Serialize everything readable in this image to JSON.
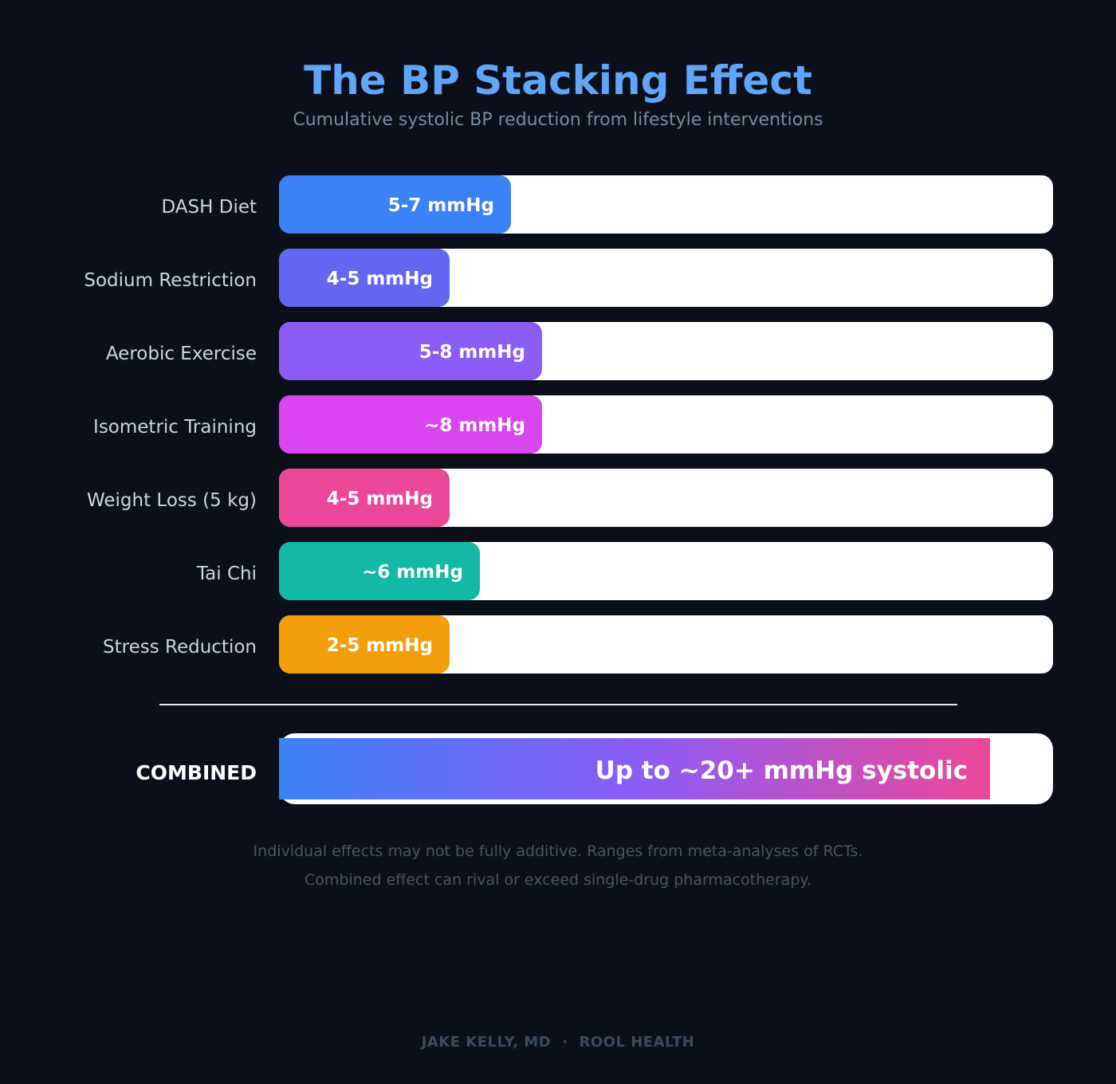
{
  "header": {
    "title": "The BP Stacking Effect",
    "subtitle": "Cumulative systolic BP reduction from lifestyle interventions"
  },
  "chart_data": {
    "type": "bar",
    "orientation": "horizontal",
    "title": "The BP Stacking Effect",
    "subtitle": "Cumulative systolic BP reduction from lifestyle interventions",
    "xlabel": "",
    "ylabel": "",
    "xlim": [
      0,
      25
    ],
    "grid": false,
    "legend": "none",
    "categories": [
      "DASH Diet",
      "Sodium Restriction",
      "Aerobic Exercise",
      "Isometric Training",
      "Weight Loss (5 kg)",
      "Tai Chi",
      "Stress Reduction"
    ],
    "values": [
      7.5,
      5.5,
      8.5,
      8.5,
      5.5,
      6.5,
      5.5
    ],
    "value_labels": [
      "5-7 mmHg",
      "4-5 mmHg",
      "5-8 mmHg",
      "~8 mmHg",
      "4-5 mmHg",
      "~6 mmHg",
      "2-5 mmHg"
    ],
    "colors": [
      "#3b82f6",
      "#6366f1",
      "#8b5cf6",
      "#d946ef",
      "#ec4899",
      "#14b8a6",
      "#f59e0b"
    ],
    "combined": {
      "label": "COMBINED",
      "value": 23,
      "value_label": "Up to ~20+ mmHg systolic",
      "gradient": [
        "#3b82f6",
        "#8b5cf6",
        "#ec4899"
      ]
    }
  },
  "notes": {
    "line1": "Individual effects may not be fully additive. Ranges from meta-analyses of RCTs.",
    "line2": "Combined effect can rival or exceed single-drug pharmacotherapy."
  },
  "footer": {
    "author": "JAKE KELLY, MD",
    "separator": "·",
    "org": "ROOL HEALTH"
  }
}
